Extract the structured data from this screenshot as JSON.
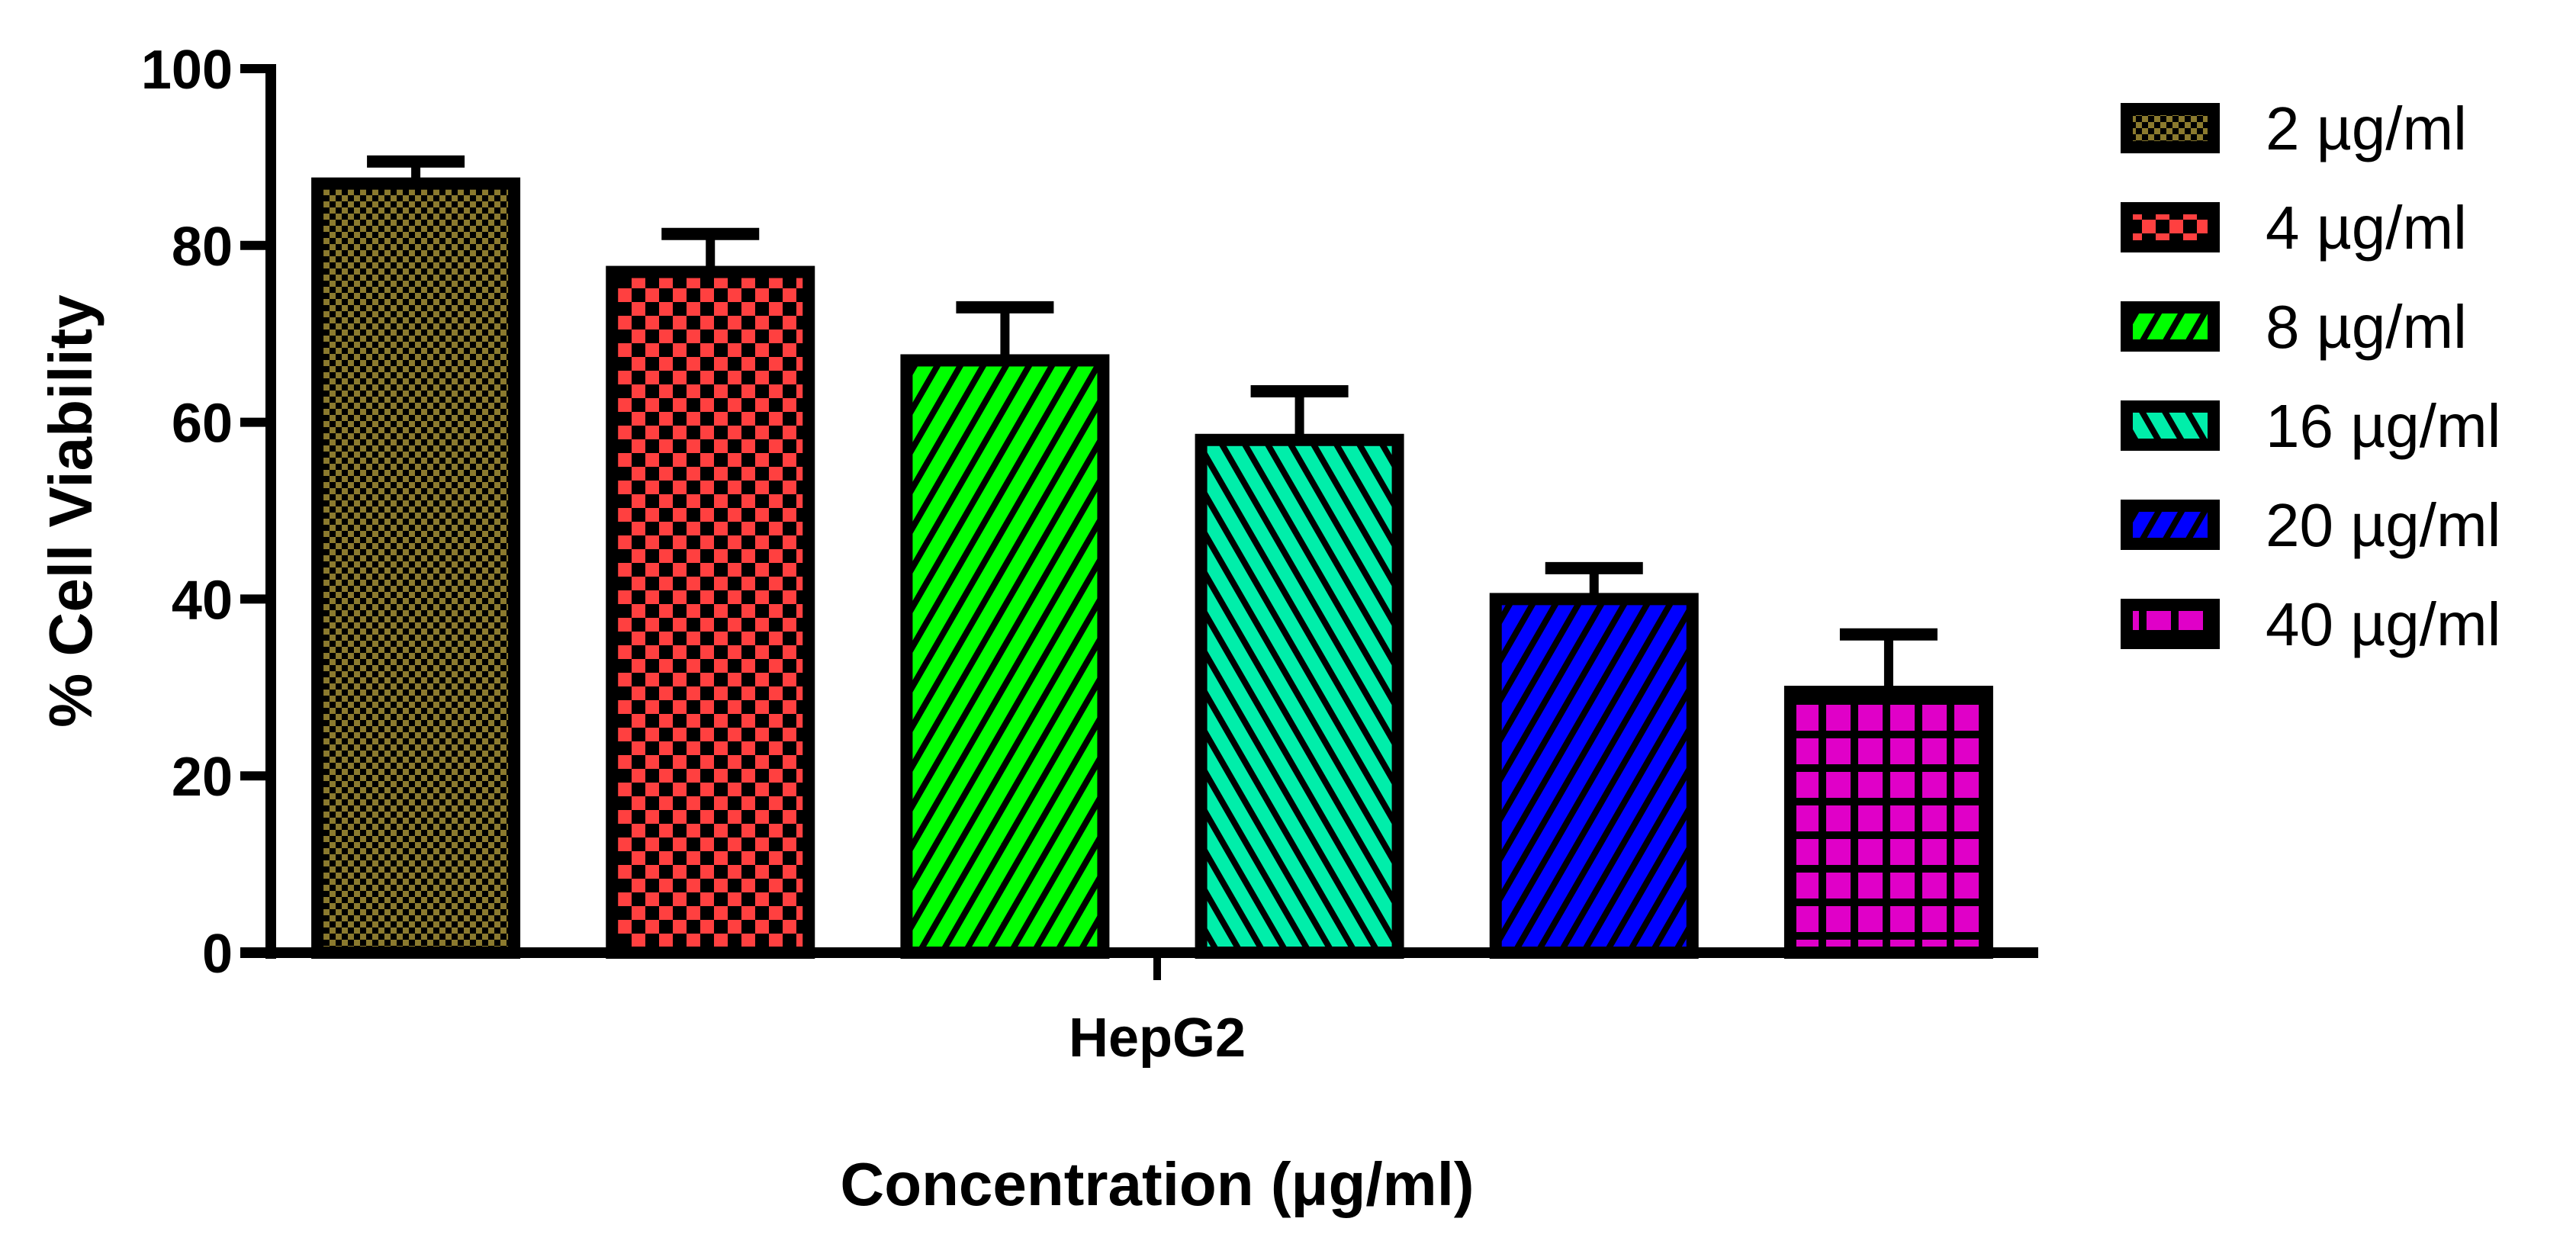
{
  "chart_data": {
    "type": "bar",
    "title": "",
    "xlabel": "Concentration (μg/ml)",
    "ylabel": "%  Cell Viability",
    "ylim": [
      0,
      100
    ],
    "yticks": [
      "0",
      "20",
      "40",
      "60",
      "80",
      "100"
    ],
    "categories": [
      "HepG2"
    ],
    "legend_position": "right",
    "grid": false,
    "series": [
      {
        "name": "2 µg/ml",
        "values": [
          87
        ],
        "error": [
          2.5
        ],
        "color": "#8B7A2E",
        "pattern": "fine-checker"
      },
      {
        "name": "4 µg/ml",
        "values": [
          77
        ],
        "error": [
          4.3
        ],
        "color": "#FF4040",
        "pattern": "checker"
      },
      {
        "name": "8 µg/ml",
        "values": [
          67
        ],
        "error": [
          6
        ],
        "color": "#00FF00",
        "pattern": "diagonal-up"
      },
      {
        "name": "16 µg/ml",
        "values": [
          58
        ],
        "error": [
          5.5
        ],
        "color": "#00EEAA",
        "pattern": "diagonal-down"
      },
      {
        "name": "20 µg/ml",
        "values": [
          40
        ],
        "error": [
          3.5
        ],
        "color": "#0000FF",
        "pattern": "diagonal-up"
      },
      {
        "name": "40 µg/ml",
        "values": [
          29.5
        ],
        "error": [
          6.5
        ],
        "color": "#E000C8",
        "pattern": "grid"
      }
    ]
  }
}
